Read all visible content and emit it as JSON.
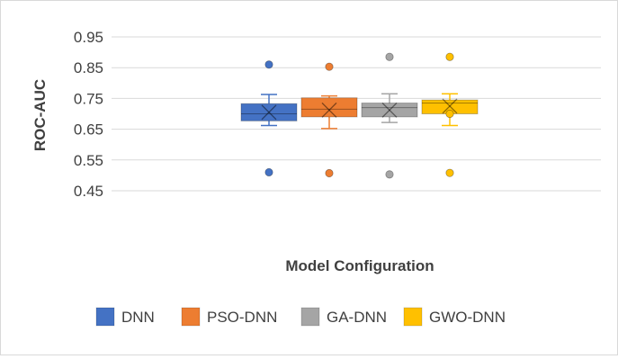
{
  "chart_data": {
    "type": "box",
    "title": "",
    "xlabel": "Model Configuration",
    "ylabel": "ROC-AUC",
    "ylim": [
      0.45,
      0.95
    ],
    "yticks": [
      "0.95",
      "0.85",
      "0.75",
      "0.65",
      "0.55",
      "0.45"
    ],
    "grid": true,
    "legend_position": "bottom",
    "series": [
      {
        "name": "DNN",
        "color": "#4472C4",
        "whisker_low": 0.662,
        "q1": 0.677,
        "median": 0.7,
        "q3": 0.733,
        "whisker_high": 0.763,
        "mean": 0.705,
        "outliers": [
          0.86,
          0.51
        ]
      },
      {
        "name": "PSO-DNN",
        "color": "#ED7D31",
        "whisker_low": 0.652,
        "q1": 0.69,
        "median": 0.715,
        "q3": 0.752,
        "whisker_high": 0.758,
        "mean": 0.712,
        "outliers": [
          0.853,
          0.507
        ]
      },
      {
        "name": "GA-DNN",
        "color": "#A5A5A5",
        "whisker_low": 0.672,
        "q1": 0.69,
        "median": 0.72,
        "q3": 0.735,
        "whisker_high": 0.765,
        "mean": 0.712,
        "outliers": [
          0.885,
          0.503
        ]
      },
      {
        "name": "GWO-DNN",
        "color": "#FFC000",
        "whisker_low": 0.662,
        "q1": 0.7,
        "median": 0.735,
        "q3": 0.745,
        "whisker_high": 0.765,
        "mean": 0.725,
        "outliers": [
          0.885,
          0.7,
          0.508
        ]
      }
    ]
  }
}
